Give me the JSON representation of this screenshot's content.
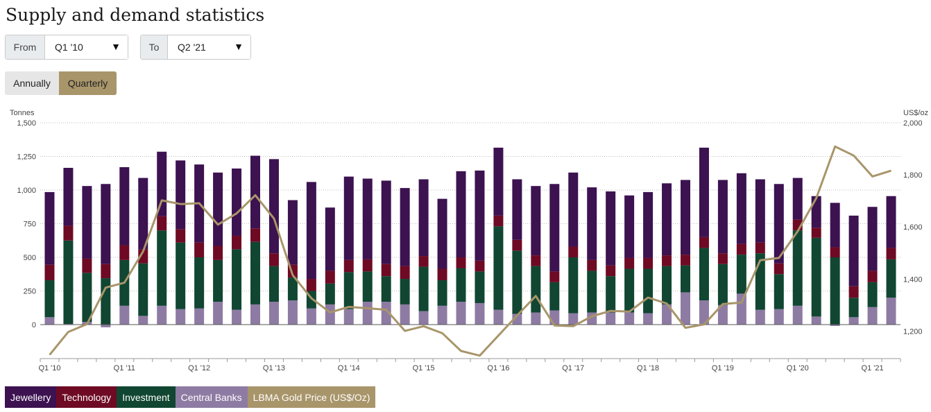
{
  "page": {
    "title": "Supply and demand statistics"
  },
  "filters": {
    "from_label": "From",
    "from_value": "Q1 '10",
    "to_label": "To",
    "to_value": "Q2 '21"
  },
  "period_toggle": {
    "options": [
      "Annually",
      "Quarterly"
    ],
    "selected": "Quarterly"
  },
  "colors": {
    "jewellery": "#3c1250",
    "technology": "#6e0a24",
    "investment": "#114632",
    "central_banks": "#8e7ba3",
    "gold_price": "#a8956a"
  },
  "legend": [
    "Jewellery",
    "Technology",
    "Investment",
    "Central Banks",
    "LBMA Gold Price (US$/Oz)"
  ],
  "chart_data": {
    "type": "bar",
    "stacked": true,
    "left_axis": {
      "label": "Tonnes",
      "ylim": [
        0,
        1500
      ],
      "ticks": [
        "0",
        "250",
        "500",
        "750",
        "1,000",
        "1,250",
        "1,500"
      ]
    },
    "right_axis": {
      "label": "US$/oz",
      "ylim": [
        1100,
        2000
      ],
      "ticks": [
        "1,200",
        "1,400",
        "1,600",
        "1,800",
        "2,000"
      ]
    },
    "x_tick_labels": [
      "Q1 '10",
      "Q1 '11",
      "Q1 '12",
      "Q1 '13",
      "Q1 '14",
      "Q1 '15",
      "Q1 '16",
      "Q1 '17",
      "Q1 '18",
      "Q1 '19",
      "Q1 '20",
      "Q1 '21"
    ],
    "categories": [
      "Q1 '10",
      "Q2 '10",
      "Q3 '10",
      "Q4 '10",
      "Q1 '11",
      "Q2 '11",
      "Q3 '11",
      "Q4 '11",
      "Q1 '12",
      "Q2 '12",
      "Q3 '12",
      "Q4 '12",
      "Q1 '13",
      "Q2 '13",
      "Q3 '13",
      "Q4 '13",
      "Q1 '14",
      "Q2 '14",
      "Q3 '14",
      "Q4 '14",
      "Q1 '15",
      "Q2 '15",
      "Q3 '15",
      "Q4 '15",
      "Q1 '16",
      "Q2 '16",
      "Q3 '16",
      "Q4 '16",
      "Q1 '17",
      "Q2 '17",
      "Q3 '17",
      "Q4 '17",
      "Q1 '18",
      "Q2 '18",
      "Q3 '18",
      "Q4 '18",
      "Q1 '19",
      "Q2 '19",
      "Q3 '19",
      "Q4 '19",
      "Q1 '20",
      "Q2 '20",
      "Q3 '20",
      "Q4 '20",
      "Q1 '21",
      "Q2 '21"
    ],
    "series": [
      {
        "name": "Central Banks",
        "values": [
          55,
          5,
          20,
          -20,
          140,
          65,
          140,
          115,
          120,
          170,
          110,
          150,
          170,
          180,
          120,
          150,
          115,
          170,
          170,
          150,
          100,
          140,
          170,
          160,
          110,
          80,
          90,
          105,
          85,
          90,
          90,
          90,
          85,
          150,
          240,
          180,
          145,
          230,
          110,
          115,
          140,
          60,
          -10,
          55,
          130,
          200
        ]
      },
      {
        "name": "Investment",
        "values": [
          275,
          620,
          365,
          345,
          340,
          390,
          560,
          495,
          380,
          310,
          450,
          465,
          265,
          170,
          130,
          155,
          275,
          225,
          190,
          190,
          330,
          190,
          250,
          235,
          620,
          470,
          345,
          210,
          415,
          310,
          270,
          325,
          330,
          285,
          200,
          390,
          305,
          290,
          420,
          260,
          560,
          585,
          500,
          145,
          185,
          285
        ]
      },
      {
        "name": "Technology",
        "values": [
          115,
          110,
          105,
          105,
          110,
          105,
          105,
          100,
          110,
          105,
          100,
          100,
          95,
          95,
          90,
          95,
          90,
          90,
          90,
          95,
          80,
          85,
          80,
          80,
          80,
          80,
          80,
          80,
          80,
          80,
          80,
          80,
          80,
          80,
          80,
          80,
          80,
          80,
          80,
          80,
          80,
          75,
          75,
          85,
          85,
          85
        ]
      },
      {
        "name": "Jewellery",
        "values": [
          540,
          430,
          540,
          595,
          580,
          530,
          480,
          510,
          580,
          545,
          500,
          540,
          700,
          480,
          720,
          470,
          620,
          600,
          620,
          580,
          570,
          520,
          640,
          670,
          505,
          450,
          515,
          650,
          550,
          540,
          550,
          465,
          490,
          535,
          555,
          665,
          545,
          525,
          470,
          590,
          310,
          235,
          330,
          525,
          475,
          385
        ]
      },
      {
        "name": "LBMA Gold Price (US$/Oz)",
        "values": [
          1109,
          1197,
          1227,
          1367,
          1386,
          1506,
          1702,
          1688,
          1691,
          1609,
          1652,
          1722,
          1632,
          1415,
          1326,
          1272,
          1293,
          1288,
          1282,
          1201,
          1219,
          1192,
          1124,
          1106,
          1183,
          1260,
          1335,
          1222,
          1219,
          1257,
          1278,
          1275,
          1329,
          1306,
          1213,
          1226,
          1304,
          1310,
          1472,
          1481,
          1583,
          1711,
          1909,
          1874,
          1794,
          1816
        ]
      }
    ]
  }
}
